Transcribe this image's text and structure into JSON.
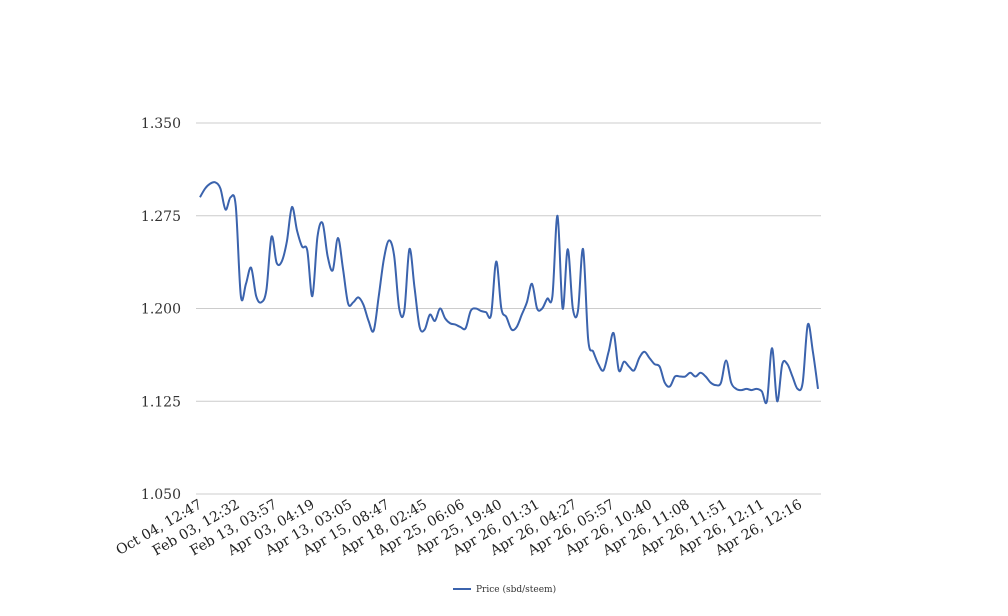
{
  "colors": {
    "line": "#3b63ad",
    "grid": "#cccccc",
    "background": "#ffffff"
  },
  "chart_data": {
    "type": "line",
    "title": "",
    "xlabel": "",
    "ylabel": "",
    "ylim": [
      1.05,
      1.35
    ],
    "y_ticks": [
      "1.350",
      "1.275",
      "1.200",
      "1.125",
      "1.050"
    ],
    "y_tick_values": [
      1.35,
      1.275,
      1.2,
      1.125,
      1.05
    ],
    "grid": true,
    "legend_position": "bottom",
    "x_tick_labels": [
      "Oct 04, 12:47",
      "Feb 03, 12:32",
      "Feb 13, 03:57",
      "Apr 03, 04:19",
      "Apr 13, 03:05",
      "Apr 15, 08:47",
      "Apr 18, 02:45",
      "Apr 25, 06:06",
      "Apr 25, 19:40",
      "Apr 26, 01:31",
      "Apr 26, 04:27",
      "Apr 26, 05:57",
      "Apr 26, 10:40",
      "Apr 26, 11:08",
      "Apr 26, 11:51",
      "Apr 26, 12:11",
      "Apr 26, 12:16"
    ],
    "series": [
      {
        "name": "Price (sbd/steem)",
        "values": [
          1.29,
          1.297,
          1.301,
          1.302,
          1.297,
          1.28,
          1.29,
          1.283,
          1.21,
          1.22,
          1.233,
          1.21,
          1.205,
          1.215,
          1.258,
          1.237,
          1.238,
          1.254,
          1.282,
          1.263,
          1.25,
          1.247,
          1.21,
          1.258,
          1.269,
          1.242,
          1.231,
          1.257,
          1.232,
          1.204,
          1.205,
          1.209,
          1.203,
          1.19,
          1.182,
          1.21,
          1.24,
          1.255,
          1.243,
          1.2,
          1.198,
          1.248,
          1.217,
          1.185,
          1.183,
          1.195,
          1.19,
          1.2,
          1.192,
          1.188,
          1.187,
          1.185,
          1.184,
          1.198,
          1.2,
          1.198,
          1.197,
          1.195,
          1.238,
          1.2,
          1.193,
          1.183,
          1.185,
          1.195,
          1.205,
          1.22,
          1.2,
          1.2,
          1.208,
          1.21,
          1.275,
          1.2,
          1.248,
          1.2,
          1.198,
          1.248,
          1.175,
          1.165,
          1.155,
          1.15,
          1.165,
          1.18,
          1.15,
          1.157,
          1.153,
          1.15,
          1.16,
          1.165,
          1.16,
          1.155,
          1.153,
          1.14,
          1.137,
          1.145,
          1.145,
          1.145,
          1.148,
          1.145,
          1.148,
          1.145,
          1.14,
          1.138,
          1.14,
          1.158,
          1.14,
          1.135,
          1.134,
          1.135,
          1.134,
          1.135,
          1.133,
          1.125,
          1.168,
          1.125,
          1.155,
          1.155,
          1.145,
          1.135,
          1.14,
          1.187,
          1.165,
          1.135
        ]
      }
    ]
  }
}
